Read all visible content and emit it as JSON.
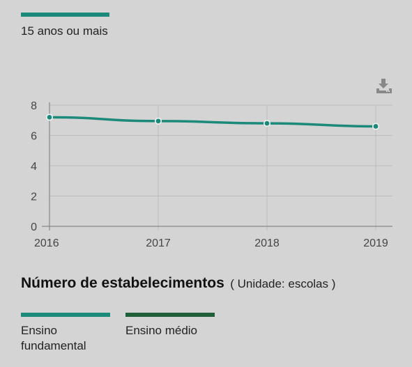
{
  "top_legend": {
    "label": "15 anos ou mais",
    "color": "#1b8a7a"
  },
  "download_icon": "download-icon",
  "chart_data": {
    "type": "line",
    "x": [
      "2016",
      "2017",
      "2018",
      "2019"
    ],
    "series": [
      {
        "name": "15 anos ou mais",
        "values": [
          7.2,
          6.95,
          6.8,
          6.6
        ],
        "color": "#1b8a7a"
      }
    ],
    "yticks": [
      0,
      2,
      4,
      6,
      8
    ],
    "ylim": [
      0,
      8
    ],
    "grid": true,
    "title": "",
    "xlabel": "",
    "ylabel": ""
  },
  "section": {
    "title": "Número de estabelecimentos",
    "unit": "( Unidade: escolas )"
  },
  "bottom_legend": [
    {
      "label": "Ensino fundamental",
      "color": "#1b8a7a"
    },
    {
      "label": "Ensino médio",
      "color": "#1f5f3a"
    }
  ]
}
